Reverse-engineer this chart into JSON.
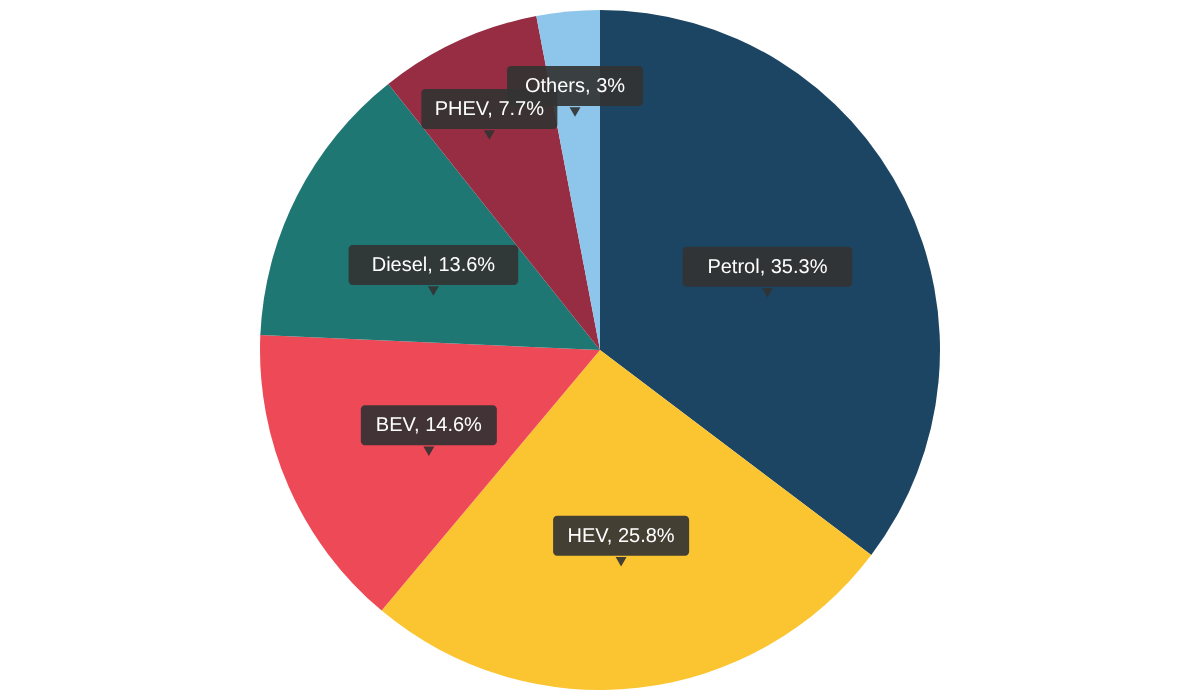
{
  "chart_data": {
    "type": "pie",
    "categories": [
      "Petrol",
      "HEV",
      "BEV",
      "Diesel",
      "PHEV",
      "Others"
    ],
    "values": [
      35.3,
      25.8,
      14.6,
      13.6,
      7.7,
      3
    ],
    "colors": [
      "#1c4563",
      "#fbc531",
      "#ee4957",
      "#1f7774",
      "#962d42",
      "#8ec5ea"
    ],
    "value_labels": [
      "35.3%",
      "25.8%",
      "14.6%",
      "13.6%",
      "7.7%",
      "3%"
    ]
  }
}
